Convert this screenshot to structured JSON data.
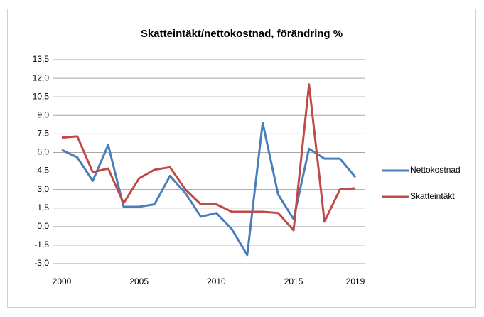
{
  "chart_data": {
    "type": "line",
    "title": "Skatteintäkt/nettokostnad, förändring %",
    "x": [
      2000,
      2001,
      2002,
      2003,
      2004,
      2005,
      2006,
      2007,
      2008,
      2009,
      2010,
      2011,
      2012,
      2013,
      2014,
      2015,
      2016,
      2017,
      2018,
      2019
    ],
    "series": [
      {
        "name": "Nettokostnad",
        "color": "#4a7ebb",
        "values": [
          6.2,
          5.6,
          3.7,
          6.6,
          1.6,
          1.6,
          1.8,
          4.1,
          2.7,
          0.8,
          1.1,
          -0.2,
          -2.3,
          8.4,
          2.6,
          0.6,
          6.3,
          5.5,
          5.5,
          4.0
        ]
      },
      {
        "name": "Skatteintäkt",
        "color": "#be4b48",
        "values": [
          7.2,
          7.3,
          4.4,
          4.7,
          1.9,
          3.9,
          4.6,
          4.8,
          3.0,
          1.8,
          1.8,
          1.2,
          1.2,
          1.2,
          1.1,
          -0.3,
          11.5,
          0.4,
          3.0,
          3.1
        ]
      }
    ],
    "xlim": [
      2000,
      2019
    ],
    "xticks": [
      2000,
      2005,
      2010,
      2015,
      2019
    ],
    "ylim": [
      -3,
      13.5
    ],
    "yticks": [
      {
        "value": -3,
        "label": "-3,0"
      },
      {
        "value": -1.5,
        "label": "-1,5"
      },
      {
        "value": 0,
        "label": "0,0"
      },
      {
        "value": 1.5,
        "label": "1,5"
      },
      {
        "value": 3,
        "label": "3,0"
      },
      {
        "value": 4.5,
        "label": "4,5"
      },
      {
        "value": 6,
        "label": "6,0"
      },
      {
        "value": 7.5,
        "label": "7,5"
      },
      {
        "value": 9,
        "label": "9,0"
      },
      {
        "value": 10.5,
        "label": "10,5"
      },
      {
        "value": 12,
        "label": "12,0"
      },
      {
        "value": 13.5,
        "label": "13,5"
      }
    ],
    "grid": true,
    "legend": "right"
  }
}
